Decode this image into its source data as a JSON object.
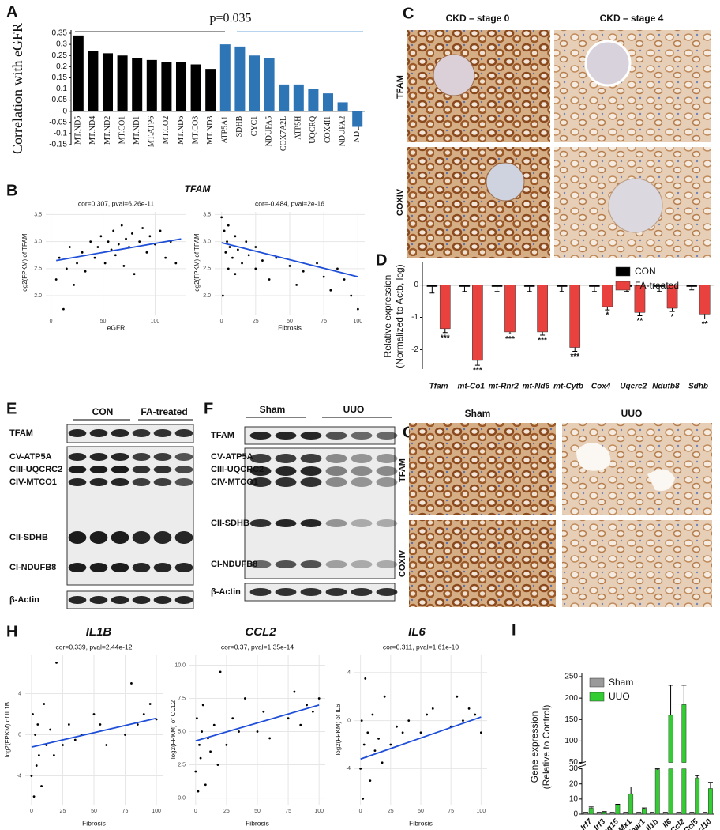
{
  "chart_data": [
    {
      "type": "bar",
      "panel": "A",
      "ylabel": "Correlation with eGFR",
      "annotation": "p=0.035",
      "categories": [
        "MT.ND5",
        "MT.ND4",
        "MT.ND2",
        "MT.CO1",
        "MT.ND1",
        "MT.ATP6",
        "MT.CO2",
        "MT.ND6",
        "MT.CO3",
        "MT.ND3",
        "ATP5A1",
        "SDHB",
        "CYC1",
        "NDUFA5",
        "COX7A2L",
        "ATP5H",
        "UQCRQ",
        "COX4I1",
        "NDUFA2",
        "NDUFA"
      ],
      "values": [
        0.34,
        0.27,
        0.26,
        0.25,
        0.24,
        0.23,
        0.22,
        0.22,
        0.21,
        0.19,
        0.3,
        0.29,
        0.25,
        0.24,
        0.12,
        0.12,
        0.1,
        0.08,
        0.04,
        -0.07
      ],
      "colors": [
        "#000000",
        "#000000",
        "#000000",
        "#000000",
        "#000000",
        "#000000",
        "#000000",
        "#000000",
        "#000000",
        "#000000",
        "#2e75b6",
        "#2e75b6",
        "#2e75b6",
        "#2e75b6",
        "#2e75b6",
        "#2e75b6",
        "#2e75b6",
        "#2e75b6",
        "#2e75b6",
        "#2e75b6"
      ],
      "ylim": [
        -0.15,
        0.35
      ],
      "yticks": [
        0.35,
        0.3,
        0.25,
        0.2,
        0.15,
        0.1,
        0.05,
        0,
        -0.05,
        -0.1,
        -0.15
      ]
    },
    {
      "type": "scatter",
      "panel": "B",
      "panel_title": "TFAM",
      "subtitle": "cor=0.307, pval=6.26e-11",
      "xlabel": "eGFR",
      "ylabel": "log2(FPKM) of TFAM",
      "x": [
        5,
        8,
        12,
        15,
        18,
        22,
        25,
        30,
        33,
        38,
        42,
        45,
        48,
        52,
        55,
        58,
        60,
        62,
        65,
        68,
        70,
        72,
        75,
        78,
        80,
        85,
        88,
        92,
        95,
        100,
        105,
        110,
        115,
        120
      ],
      "y": [
        2.3,
        2.7,
        1.75,
        2.5,
        2.9,
        2.2,
        2.6,
        2.8,
        2.45,
        3.0,
        2.7,
        2.9,
        3.1,
        2.6,
        3.0,
        2.85,
        3.2,
        2.75,
        2.95,
        3.3,
        2.55,
        3.05,
        2.9,
        3.15,
        2.4,
        3.0,
        3.25,
        2.8,
        3.1,
        2.95,
        3.2,
        2.7,
        3.0,
        2.6
      ],
      "fit": {
        "x": [
          5,
          125
        ],
        "y": [
          2.65,
          3.05
        ]
      },
      "color": "#000000",
      "fit_color": "#1f4fd8",
      "xlim": [
        -5,
        130
      ],
      "xticks": [
        0,
        50,
        100
      ],
      "ylim": [
        1.65,
        3.55
      ],
      "yticks": [
        {
          "value": 2,
          "label": "2.0"
        },
        2.5,
        {
          "value": 3,
          "label": "3.0"
        },
        3.5
      ],
      "grid": true
    },
    {
      "type": "scatter",
      "subtitle": "cor=-0.484, pval=2e-16",
      "xlabel": "Fibrosis",
      "ylabel": "log2(FPKM) of TFAM",
      "x": [
        0,
        1,
        2,
        3,
        4,
        5,
        5,
        6,
        8,
        10,
        10,
        12,
        15,
        18,
        20,
        25,
        25,
        30,
        35,
        40,
        50,
        55,
        60,
        70,
        75,
        80,
        85,
        90,
        95,
        100
      ],
      "y": [
        3.45,
        2.0,
        3.2,
        2.8,
        3.0,
        2.5,
        3.3,
        2.9,
        2.7,
        3.1,
        2.4,
        2.85,
        2.6,
        3.0,
        2.75,
        2.5,
        2.9,
        2.65,
        2.3,
        2.7,
        2.55,
        2.2,
        2.45,
        2.6,
        2.35,
        2.1,
        2.5,
        2.3,
        2.0,
        1.75
      ],
      "fit": {
        "x": [
          0,
          100
        ],
        "y": [
          2.98,
          2.35
        ]
      },
      "color": "#000000",
      "fit_color": "#1f4fd8",
      "xlim": [
        -5,
        105
      ],
      "xticks": [
        0,
        25,
        50,
        75,
        100
      ],
      "ylim": [
        1.65,
        3.55
      ],
      "yticks": [
        {
          "value": 2,
          "label": "2.0"
        },
        2.5,
        {
          "value": 3,
          "label": "3.0"
        },
        3.5
      ],
      "grid": true
    },
    {
      "type": "bar",
      "panel": "D",
      "ylabel": [
        "Relative expression",
        "(Normalized to Actb, log)"
      ],
      "categories": [
        "Tfam",
        "mt-Co1",
        "mt-Rnr2",
        "mt-Nd6",
        "mt-Cytb",
        "Cox4",
        "Uqcrc2",
        "Ndufb8",
        "Sdhb"
      ],
      "series": [
        {
          "name": "CON",
          "color": "#000000",
          "values": [
            -0.05,
            -0.05,
            -0.05,
            -0.05,
            -0.05,
            -0.05,
            -0.05,
            -0.05,
            -0.05
          ],
          "errors": [
            0.2,
            0.15,
            0.15,
            0.15,
            0.15,
            0.15,
            0.15,
            0.15,
            0.1
          ]
        },
        {
          "name": "FA-treated",
          "color": "#e8413e",
          "values": [
            -1.35,
            -2.33,
            -1.45,
            -1.45,
            -1.93,
            -0.67,
            -0.85,
            -0.72,
            -0.9
          ],
          "errors": [
            0.12,
            0.15,
            0.06,
            0.1,
            0.12,
            0.1,
            0.1,
            0.1,
            0.15
          ],
          "annotations": [
            "***",
            "***",
            "***",
            "***",
            "***",
            "*",
            "**",
            "*",
            "**"
          ]
        }
      ],
      "ylim": [
        -2.6,
        0.6
      ],
      "yticks": [
        0,
        -1,
        -2
      ],
      "legend": "upper right"
    },
    {
      "type": "scatter",
      "panel": "H",
      "title": "IL1B",
      "subtitle": "cor=0.339, pval=2.44e-12",
      "xlabel": "Fibrosis",
      "ylabel": "log2(FPKM) of IL1B",
      "x": [
        0,
        1,
        2,
        3,
        4,
        5,
        6,
        8,
        10,
        12,
        15,
        18,
        20,
        25,
        30,
        35,
        40,
        50,
        55,
        60,
        75,
        80,
        85,
        90,
        95,
        100
      ],
      "y": [
        -4,
        2,
        -6,
        0,
        -3,
        1,
        -2,
        -5,
        3,
        -1,
        0.5,
        -2,
        7,
        -1,
        1,
        -0.5,
        0,
        2,
        1,
        -1,
        0,
        5,
        1,
        2,
        3,
        1.5
      ],
      "fit": {
        "x": [
          0,
          100
        ],
        "y": [
          -1.2,
          1.6
        ]
      },
      "color": "#000000",
      "fit_color": "#1f4fd8",
      "xlim": [
        -5,
        105
      ],
      "xticks": [
        0,
        25,
        50,
        75,
        100
      ],
      "ylim": [
        -6.8,
        7.8
      ],
      "yticks": [
        -4,
        0,
        4
      ],
      "grid": true
    },
    {
      "type": "scatter",
      "title": "CCL2",
      "subtitle": "cor=0.37, pval=1.35e-14",
      "xlabel": "Fibrosis",
      "ylabel": "log2(FPKM) of CCL2",
      "x": [
        0,
        1,
        2,
        3,
        4,
        5,
        6,
        8,
        10,
        12,
        15,
        18,
        20,
        25,
        30,
        35,
        40,
        50,
        55,
        60,
        75,
        80,
        85,
        90,
        95,
        100
      ],
      "y": [
        2,
        6,
        0.5,
        4,
        3,
        5,
        7,
        1,
        4.5,
        3.5,
        5.5,
        2.5,
        9.5,
        4,
        6,
        5,
        7.5,
        5,
        6.5,
        4.5,
        6,
        8,
        5.5,
        7,
        6.5,
        7.5
      ],
      "fit": {
        "x": [
          0,
          100
        ],
        "y": [
          4.3,
          7.0
        ]
      },
      "color": "#000000",
      "fit_color": "#1f4fd8",
      "xlim": [
        -5,
        105
      ],
      "xticks": [
        0,
        25,
        50,
        75,
        100
      ],
      "ylim": [
        -0.5,
        10.8
      ],
      "yticks": [
        {
          "value": 0,
          "label": "0.0"
        },
        2.5,
        {
          "value": 5,
          "label": "5.0"
        },
        7.5,
        {
          "value": 10,
          "label": "10.0"
        }
      ],
      "grid": true
    },
    {
      "type": "scatter",
      "title": "IL6",
      "subtitle": "cor=0.311, pval=1.61e-10",
      "xlabel": "Fibrosis",
      "ylabel": "log2(FPKM) of IL6",
      "x": [
        0,
        1,
        2,
        3,
        4,
        5,
        6,
        8,
        10,
        12,
        15,
        18,
        20,
        25,
        30,
        35,
        40,
        50,
        55,
        60,
        75,
        80,
        85,
        90,
        95,
        100
      ],
      "y": [
        -4,
        0,
        -6.5,
        -2,
        3.5,
        -3,
        -1,
        -5,
        0.5,
        -2.5,
        -1.5,
        -3.5,
        2,
        -2,
        -0.5,
        -1,
        0,
        -1,
        0.5,
        1,
        -0.5,
        2,
        0,
        1,
        0.5,
        -1
      ],
      "fit": {
        "x": [
          0,
          100
        ],
        "y": [
          -3.2,
          0.3
        ]
      },
      "color": "#000000",
      "fit_color": "#1f4fd8",
      "xlim": [
        -5,
        105
      ],
      "xticks": [
        0,
        25,
        50,
        75,
        100
      ],
      "ylim": [
        -7,
        5.5
      ],
      "yticks": [
        -4,
        0,
        4
      ],
      "grid": true
    },
    {
      "type": "bar",
      "panel": "I",
      "ylabel": [
        "Gene expression",
        "(Relative to Control)"
      ],
      "categories": [
        "Irf7",
        "Irf3",
        "Isg15",
        "Mx1",
        "Ifnar1",
        "Il1b",
        "Il6",
        "Ccl2",
        "Ccl5",
        "Cxcl10"
      ],
      "series": [
        {
          "name": "Sham",
          "color": "#9a9a9a",
          "values": [
            1,
            1,
            1,
            1,
            1,
            1,
            1,
            1,
            1,
            1
          ],
          "errors": [
            0.2,
            0.2,
            0.2,
            0.2,
            0.2,
            0.2,
            0.2,
            0.2,
            0.2,
            0.2
          ]
        },
        {
          "name": "UUO",
          "color": "#33cc33",
          "values": [
            4,
            1.5,
            6,
            13.5,
            3.5,
            29.5,
            160,
            185,
            24,
            17
          ],
          "errors": [
            0.8,
            0.2,
            0.5,
            4.5,
            0.6,
            1.5,
            70,
            45,
            1.5,
            4
          ]
        }
      ],
      "ylim": [
        0,
        250
      ],
      "ybreak": [
        30,
        50
      ],
      "yticks": [
        0,
        10,
        20,
        30,
        50,
        100,
        150,
        200,
        250
      ],
      "legend": "upper left"
    }
  ],
  "figure_panels": {
    "C": {
      "letter": "C",
      "columns": [
        "CKD – stage 0",
        "CKD – stage 4"
      ],
      "rows": [
        "TFAM",
        "COXIV"
      ]
    },
    "E": {
      "letter": "E",
      "groups": [
        "CON",
        "FA-treated"
      ],
      "bands": [
        "TFAM",
        "CV-ATP5A",
        "CIII-UQCRC2",
        "CIV-MTCO1",
        "CII-SDHB",
        "CI-NDUFB8",
        "β-Actin"
      ]
    },
    "F": {
      "letter": "F",
      "groups": [
        "Sham",
        "UUO"
      ],
      "bands": [
        "TFAM",
        "CV-ATP5A",
        "CIII-UQCRC2",
        "CIV-MTCO1",
        "CII-SDHB",
        "CI-NDUFB8",
        "β-Actin"
      ]
    },
    "G": {
      "letter": "G",
      "columns": [
        "Sham",
        "UUO"
      ],
      "rows": [
        "TFAM",
        "COXIV"
      ]
    }
  }
}
